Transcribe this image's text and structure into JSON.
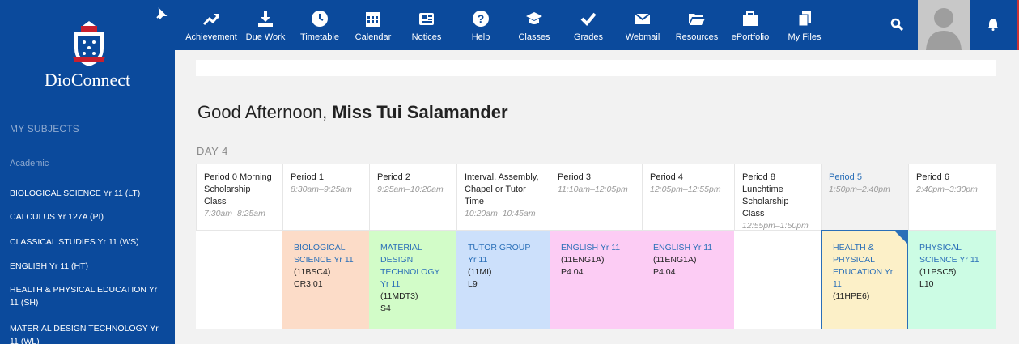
{
  "brand": "DioConnect",
  "sidebar": {
    "heading": "MY SUBJECTS",
    "group": "Academic",
    "subjects": [
      "BIOLOGICAL SCIENCE Yr 11 (LT)",
      "CALCULUS Yr 127A (PI)",
      "CLASSICAL STUDIES Yr 11 (WS)",
      "ENGLISH Yr 11 (HT)",
      "HEALTH & PHYSICAL EDUCATION Yr 11 (SH)",
      "MATERIAL DESIGN TECHNOLOGY Yr 11 (WL)"
    ]
  },
  "nav": [
    {
      "label": "Achievement",
      "icon": "trend-up-icon"
    },
    {
      "label": "Due Work",
      "icon": "download-tray-icon"
    },
    {
      "label": "Timetable",
      "icon": "clock-icon"
    },
    {
      "label": "Calendar",
      "icon": "calendar-icon"
    },
    {
      "label": "Notices",
      "icon": "newspaper-icon"
    },
    {
      "label": "Help",
      "icon": "help-icon"
    },
    {
      "label": "Classes",
      "icon": "graduation-cap-icon"
    },
    {
      "label": "Grades",
      "icon": "check-icon"
    },
    {
      "label": "Webmail",
      "icon": "envelope-icon"
    },
    {
      "label": "Resources",
      "icon": "folder-open-icon"
    },
    {
      "label": "ePortfolio",
      "icon": "briefcase-icon"
    },
    {
      "label": "My Files",
      "icon": "files-icon"
    }
  ],
  "greeting": {
    "prefix": "Good Afternoon,",
    "name": "Miss Tui Salamander"
  },
  "day": "DAY 4",
  "periods": [
    {
      "name": "Period 0 Morning Scholarship Class",
      "time": "7:30am–8:25am",
      "class": null,
      "code": "",
      "room": "",
      "color": "#ffffff"
    },
    {
      "name": "Period 1",
      "time": "8:30am–9:25am",
      "class": "BIOLOGICAL SCIENCE Yr 11",
      "code": "(11BSC4)",
      "room": "CR3.01",
      "color": "#fcdcc8"
    },
    {
      "name": "Period 2",
      "time": "9:25am–10:20am",
      "class": "MATERIAL DESIGN TECHNOLOGY Yr 11",
      "code": "(11MDT3)",
      "room": "S4",
      "color": "#d2fcc8"
    },
    {
      "name": "Interval, Assembly, Chapel or Tutor Time",
      "time": "10:20am–10:45am",
      "class": "TUTOR GROUP Yr 11",
      "code": "(11MI)",
      "room": "L9",
      "color": "#cce0fb"
    },
    {
      "name": "Period 3",
      "time": "11:10am–12:05pm",
      "class": "ENGLISH Yr 11",
      "code": "(11ENG1A)",
      "room": "P4.04",
      "color": "#fcccf4"
    },
    {
      "name": "Period 4",
      "time": "12:05pm–12:55pm",
      "class": "ENGLISH Yr 11",
      "code": "(11ENG1A)",
      "room": "P4.04",
      "color": "#fcccf4"
    },
    {
      "name": "Period 8 Lunchtime Scholarship Class",
      "time": "12:55pm–1:50pm",
      "class": null,
      "code": "",
      "room": "",
      "color": "#ffffff"
    },
    {
      "name": "Period 5",
      "time": "1:50pm–2:40pm",
      "class": "HEALTH & PHYSICAL EDUCATION Yr 11",
      "code": "(11HPE6)",
      "room": "",
      "color": "#fcf0c8",
      "current": true
    },
    {
      "name": "Period 6",
      "time": "2:40pm–3:30pm",
      "class": "PHYSICAL SCIENCE Yr 11",
      "code": "(11PSC5)",
      "room": "L10",
      "color": "#ccfce4"
    }
  ]
}
